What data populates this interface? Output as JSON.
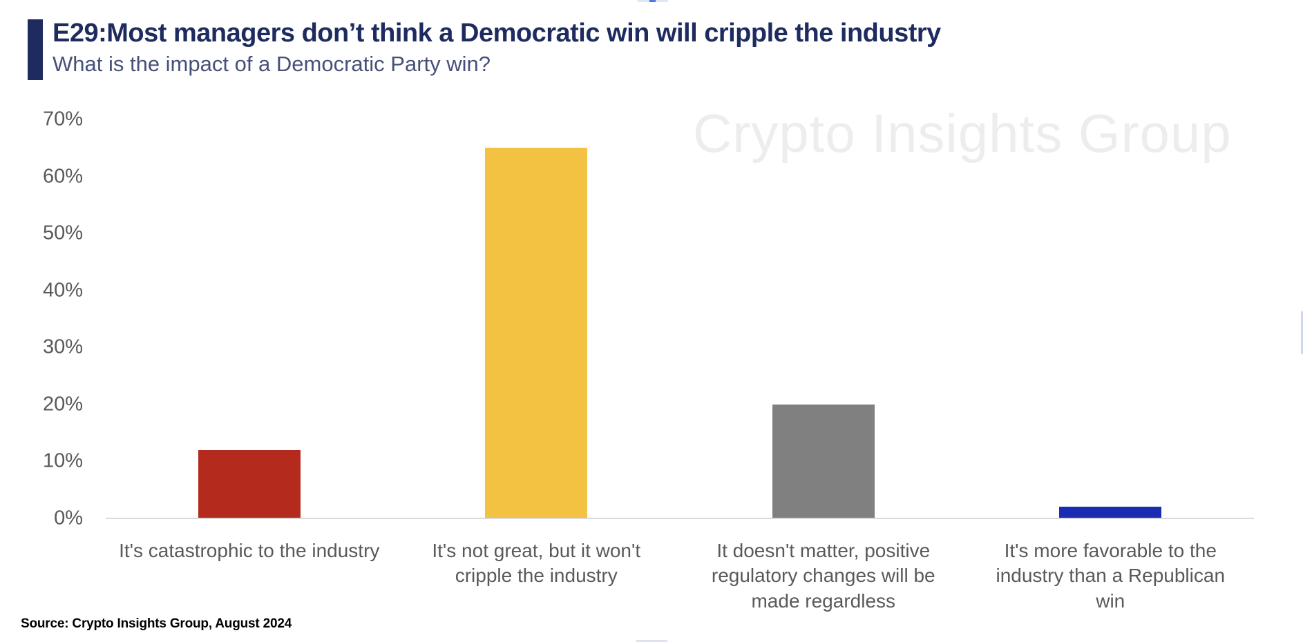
{
  "header": {
    "title": "E29:Most managers don’t think a Democratic win will cripple the industry",
    "subtitle": "What is the impact of a Democratic Party win?"
  },
  "watermark": "Crypto Insights Group",
  "source": "Source: Crypto Insights Group, August 2024",
  "colors": {
    "title_navy": "#1e2b5e",
    "subtitle_slate": "#465078",
    "axis_text_gray": "#595959",
    "axis_line_gray": "#d9d9d9",
    "watermark_gray": "#ededed"
  },
  "chart_data": {
    "type": "bar",
    "title": "E29:Most managers don’t think a Democratic win will cripple the industry",
    "subtitle": "What is the impact of a Democratic Party win?",
    "categories": [
      "It's catastrophic to the industry",
      "It's not great, but it won't cripple the industry",
      "It doesn't matter, positive regulatory changes will be made regardless",
      "It's more favorable to the industry than a Republican win"
    ],
    "values": [
      12,
      65,
      20,
      2
    ],
    "colors": [
      "#b42b1d",
      "#f3c242",
      "#808080",
      "#1b2bb2"
    ],
    "xlabel": "",
    "ylabel": "",
    "ylim": [
      0,
      70
    ],
    "y_tick_labels": [
      "70%",
      "60%",
      "50%",
      "40%",
      "30%",
      "20%",
      "10%",
      "0%"
    ],
    "grid": false,
    "legend": false
  }
}
